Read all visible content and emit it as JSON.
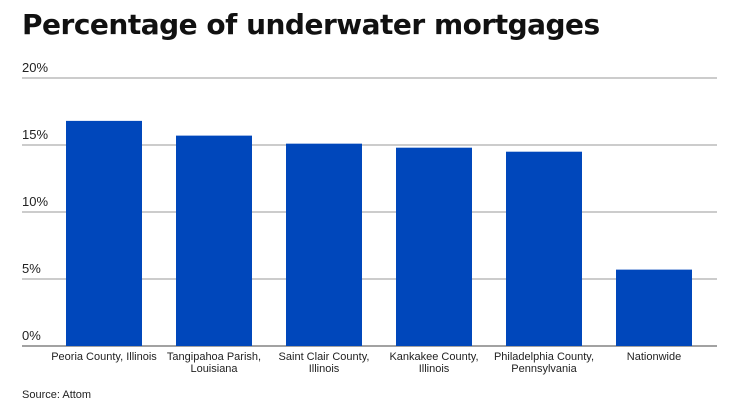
{
  "chart_data": {
    "type": "bar",
    "title": "Percentage of underwater mortgages",
    "categories": [
      [
        "Peoria County, Illinois"
      ],
      [
        "Tangipahoa Parish,",
        "Louisiana"
      ],
      [
        "Saint Clair County,",
        "Illinois"
      ],
      [
        "Kankakee County,",
        "Illinois"
      ],
      [
        "Philadelphia County,",
        "Pennsylvania"
      ],
      [
        "Nationwide"
      ]
    ],
    "values": [
      16.8,
      15.7,
      15.1,
      14.8,
      14.5,
      5.7
    ],
    "ylim": [
      0,
      20
    ],
    "yticks": [
      0,
      5,
      10,
      15,
      20
    ],
    "ytick_labels": [
      "0%",
      "5%",
      "10%",
      "15%",
      "20%"
    ],
    "grid": true,
    "bar_color": "#0047bb",
    "source": "Source: Attom"
  }
}
